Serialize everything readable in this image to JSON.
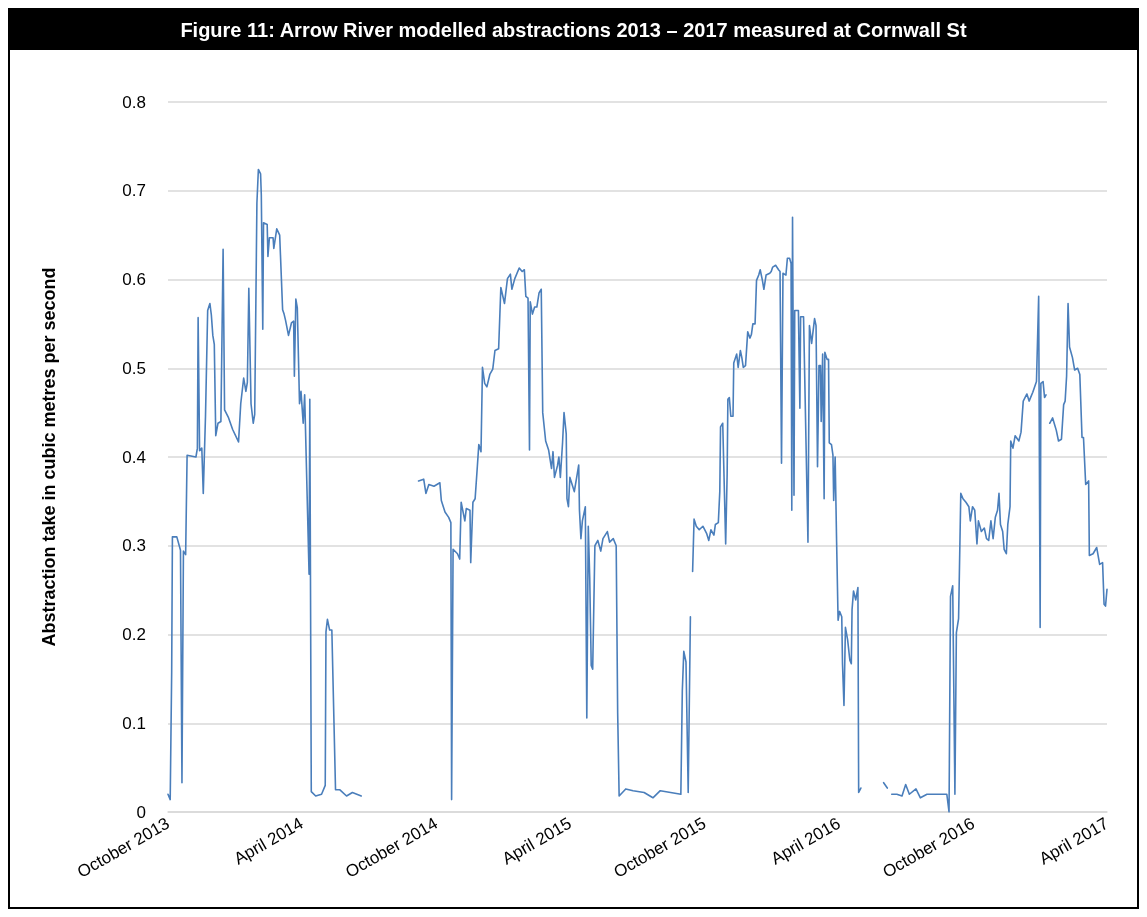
{
  "chart_data": {
    "type": "line",
    "title": "Figure 11: Arrow River modelled abstractions 2013 – 2017 measured at Cornwall St",
    "ylabel": "Abstraction take in cubic metres per second",
    "xlim": [
      "2013-10-01",
      "2017-04-01"
    ],
    "xticks": [
      {
        "value": "2013-10-01",
        "label": "October 2013"
      },
      {
        "value": "2014-04-01",
        "label": "April 2014"
      },
      {
        "value": "2014-10-01",
        "label": "October 2014"
      },
      {
        "value": "2015-04-01",
        "label": "April 2015"
      },
      {
        "value": "2015-10-01",
        "label": "October 2015"
      },
      {
        "value": "2016-04-01",
        "label": "April 2016"
      },
      {
        "value": "2016-10-01",
        "label": "October 2016"
      },
      {
        "value": "2017-04-01",
        "label": "April 2017"
      }
    ],
    "ylim": [
      0,
      0.8
    ],
    "yticks": [
      0,
      0.1,
      0.2,
      0.3,
      0.4,
      0.5,
      0.6,
      0.7,
      0.8
    ],
    "grid": "y",
    "marker": "none",
    "line_style": "solid",
    "x": [
      "2013-10-01",
      "2013-10-04",
      "2013-10-06",
      "2013-10-07",
      "2013-10-13",
      "2013-10-18",
      "2013-10-20",
      "2013-10-22",
      "2013-10-25",
      "2013-10-27",
      "2013-11-08",
      "2013-11-10",
      "2013-11-11",
      "2013-11-13",
      "2013-11-16",
      "2013-11-18",
      "2013-11-21",
      "2013-11-24",
      "2013-11-27",
      "2013-11-29",
      "2013-12-01",
      "2013-12-03",
      "2013-12-05",
      "2013-12-08",
      "2013-12-12",
      "2013-12-15",
      "2013-12-17",
      "2013-12-22",
      "2013-12-28",
      "2014-01-05",
      "2014-01-08",
      "2014-01-12",
      "2014-01-15",
      "2014-01-17",
      "2014-01-19",
      "2014-01-22",
      "2014-01-25",
      "2014-01-27",
      "2014-01-30",
      "2014-02-01",
      "2014-02-04",
      "2014-02-05",
      "2014-02-07",
      "2014-02-08",
      "2014-02-13",
      "2014-02-14",
      "2014-02-16",
      "2014-02-21",
      "2014-02-22",
      "2014-02-26",
      "2014-03-02",
      "2014-03-06",
      "2014-03-08",
      "2014-03-10",
      "2014-03-14",
      "2014-03-18",
      "2014-03-21",
      "2014-03-22",
      "2014-03-24",
      "2014-03-26",
      "2014-03-29",
      "2014-03-31",
      "2014-04-03",
      "2014-04-05",
      "2014-04-11",
      "2014-04-12",
      "2014-04-14",
      "2014-04-20",
      "2014-04-28",
      "2014-05-03",
      "2014-05-04",
      "2014-05-06",
      "2014-05-09",
      "2014-05-12",
      "2014-05-17",
      "2014-05-23",
      "2014-06-01",
      "2014-06-09",
      "2014-06-21",
      "2014-08-01",
      "2014-09-07",
      "2014-09-14",
      "2014-09-17",
      "2014-09-21",
      "2014-09-28",
      "2014-10-06",
      "2014-10-08",
      "2014-10-13",
      "2014-10-18",
      "2014-10-21",
      "2014-10-22",
      "2014-10-24",
      "2014-10-30",
      "2014-11-02",
      "2014-11-04",
      "2014-11-09",
      "2014-11-11",
      "2014-11-16",
      "2014-11-17",
      "2014-11-20",
      "2014-11-23",
      "2014-11-26",
      "2014-11-28",
      "2014-12-01",
      "2014-12-03",
      "2014-12-06",
      "2014-12-09",
      "2014-12-13",
      "2014-12-17",
      "2014-12-20",
      "2014-12-25",
      "2014-12-28",
      "2015-01-02",
      "2015-01-06",
      "2015-01-10",
      "2015-01-12",
      "2015-01-16",
      "2015-01-22",
      "2015-01-26",
      "2015-01-29",
      "2015-01-31",
      "2015-02-03",
      "2015-02-05",
      "2015-02-06",
      "2015-02-09",
      "2015-02-12",
      "2015-02-15",
      "2015-02-18",
      "2015-02-21",
      "2015-02-23",
      "2015-02-27",
      "2015-03-03",
      "2015-03-07",
      "2015-03-09",
      "2015-03-11",
      "2015-03-15",
      "2015-03-17",
      "2015-03-19",
      "2015-03-22",
      "2015-03-24",
      "2015-03-27",
      "2015-03-28",
      "2015-03-30",
      "2015-04-01",
      "2015-04-04",
      "2015-04-07",
      "2015-04-11",
      "2015-04-13",
      "2015-04-14",
      "2015-04-16",
      "2015-04-18",
      "2015-04-22",
      "2015-04-24",
      "2015-04-26",
      "2015-04-28",
      "2015-04-30",
      "2015-05-02",
      "2015-05-05",
      "2015-05-09",
      "2015-05-13",
      "2015-05-16",
      "2015-05-22",
      "2015-05-25",
      "2015-05-30",
      "2015-06-03",
      "2015-06-05",
      "2015-06-07",
      "2015-06-16",
      "2015-06-26",
      "2015-07-11",
      "2015-07-23",
      "2015-08-02",
      "2015-08-16",
      "2015-08-30",
      "2015-09-01",
      "2015-09-03",
      "2015-09-06",
      "2015-09-09",
      "2015-09-12",
      "2015-09-13",
      "2015-09-15",
      "2015-09-17",
      "2015-09-20",
      "2015-09-24",
      "2015-09-29",
      "2015-10-04",
      "2015-10-07",
      "2015-10-10",
      "2015-10-14",
      "2015-10-16",
      "2015-10-20",
      "2015-10-22",
      "2015-10-23",
      "2015-10-26",
      "2015-10-30",
      "2015-11-01",
      "2015-11-02",
      "2015-11-04",
      "2015-11-06",
      "2015-11-09",
      "2015-11-10",
      "2015-11-14",
      "2015-11-16",
      "2015-11-19",
      "2015-11-21",
      "2015-11-23",
      "2015-11-26",
      "2015-11-29",
      "2015-12-02",
      "2015-12-04",
      "2015-12-06",
      "2015-12-09",
      "2015-12-11",
      "2015-12-14",
      "2015-12-16",
      "2015-12-19",
      "2015-12-21",
      "2015-12-24",
      "2015-12-29",
      "2015-12-31",
      "2016-01-02",
      "2016-01-06",
      "2016-01-10",
      "2016-01-12",
      "2016-01-14",
      "2016-01-16",
      "2016-01-20",
      "2016-01-22",
      "2016-01-25",
      "2016-01-27",
      "2016-01-28",
      "2016-01-29",
      "2016-01-31",
      "2016-02-01",
      "2016-02-06",
      "2016-02-08",
      "2016-02-09",
      "2016-02-13",
      "2016-02-19",
      "2016-02-21",
      "2016-02-24",
      "2016-02-28",
      "2016-03-01",
      "2016-03-03",
      "2016-03-05",
      "2016-03-07",
      "2016-03-08",
      "2016-03-10",
      "2016-03-12",
      "2016-03-13",
      "2016-03-16",
      "2016-03-18",
      "2016-03-19",
      "2016-03-22",
      "2016-03-24",
      "2016-03-25",
      "2016-03-27",
      "2016-03-29",
      "2016-03-31",
      "2016-04-02",
      "2016-04-05",
      "2016-04-06",
      "2016-04-08",
      "2016-04-10",
      "2016-04-13",
      "2016-04-16",
      "2016-04-18",
      "2016-04-19",
      "2016-04-21",
      "2016-04-24",
      "2016-04-27",
      "2016-04-28",
      "2016-05-01",
      "2016-05-10",
      "2016-06-01",
      "2016-06-06",
      "2016-06-08",
      "2016-06-12",
      "2016-06-19",
      "2016-06-26",
      "2016-07-01",
      "2016-07-06",
      "2016-07-15",
      "2016-07-21",
      "2016-07-30",
      "2016-08-12",
      "2016-08-26",
      "2016-08-29",
      "2016-08-31",
      "2016-09-03",
      "2016-09-06",
      "2016-09-08",
      "2016-09-11",
      "2016-09-14",
      "2016-09-17",
      "2016-09-21",
      "2016-09-25",
      "2016-09-27",
      "2016-09-30",
      "2016-10-03",
      "2016-10-06",
      "2016-10-08",
      "2016-10-12",
      "2016-10-16",
      "2016-10-19",
      "2016-10-22",
      "2016-10-25",
      "2016-10-28",
      "2016-10-31",
      "2016-11-03",
      "2016-11-05",
      "2016-11-07",
      "2016-11-10",
      "2016-11-12",
      "2016-11-15",
      "2016-11-17",
      "2016-11-20",
      "2016-11-21",
      "2016-11-24",
      "2016-11-27",
      "2016-12-02",
      "2016-12-05",
      "2016-12-08",
      "2016-12-13",
      "2016-12-16",
      "2016-12-21",
      "2016-12-26",
      "2016-12-29",
      "2016-12-31",
      "2017-01-01",
      "2017-01-04",
      "2017-01-06",
      "2017-01-08",
      "2017-01-10",
      "2017-01-13",
      "2017-01-17",
      "2017-01-22",
      "2017-01-25",
      "2017-01-29",
      "2017-02-01",
      "2017-02-03",
      "2017-02-05",
      "2017-02-07",
      "2017-02-09",
      "2017-02-13",
      "2017-02-16",
      "2017-02-20",
      "2017-02-23",
      "2017-02-26",
      "2017-02-28",
      "2017-03-03",
      "2017-03-07",
      "2017-03-08",
      "2017-03-13",
      "2017-03-18",
      "2017-03-22",
      "2017-03-26",
      "2017-03-28",
      "2017-03-30",
      "2017-04-01"
    ],
    "series": [
      {
        "color": "#4a7ebb",
        "values": [
          0.02,
          0.014,
          0.157,
          0.31,
          0.31,
          0.295,
          0.033,
          0.294,
          0.29,
          0.402,
          0.4,
          0.41,
          0.557,
          0.407,
          0.41,
          0.359,
          0.445,
          0.565,
          0.573,
          0.56,
          0.537,
          0.527,
          0.424,
          0.438,
          0.44,
          0.634,
          0.453,
          0.445,
          0.431,
          0.417,
          0.46,
          0.489,
          0.474,
          0.484,
          0.59,
          0.46,
          0.438,
          0.448,
          0.686,
          0.724,
          0.719,
          0.695,
          0.544,
          0.664,
          0.662,
          0.626,
          0.647,
          0.647,
          0.635,
          0.657,
          0.65,
          0.566,
          0.561,
          0.554,
          0.537,
          0.551,
          0.553,
          0.491,
          0.578,
          0.568,
          0.46,
          0.474,
          0.438,
          0.47,
          0.268,
          0.465,
          0.023,
          0.018,
          0.02,
          0.03,
          0.203,
          0.217,
          0.205,
          0.205,
          0.025,
          0.025,
          0.018,
          0.022,
          0.018,
          null,
          0.373,
          0.375,
          0.359,
          0.369,
          0.367,
          0.371,
          0.351,
          0.338,
          0.332,
          0.326,
          0.014,
          0.296,
          0.291,
          0.285,
          0.349,
          0.328,
          0.342,
          0.34,
          0.281,
          0.349,
          0.353,
          0.389,
          0.414,
          0.406,
          0.501,
          0.483,
          0.479,
          0.493,
          0.499,
          0.52,
          0.522,
          0.591,
          0.573,
          0.601,
          0.606,
          0.589,
          0.601,
          0.613,
          0.609,
          0.611,
          0.581,
          0.579,
          0.408,
          0.575,
          0.561,
          0.569,
          0.569,
          0.585,
          0.589,
          0.45,
          0.418,
          0.408,
          0.387,
          0.406,
          0.377,
          0.39,
          0.4,
          0.377,
          0.416,
          0.45,
          0.426,
          0.353,
          0.344,
          0.377,
          0.369,
          0.361,
          0.381,
          0.391,
          0.34,
          0.308,
          0.328,
          0.344,
          0.106,
          0.322,
          0.263,
          0.165,
          0.161,
          0.3,
          0.306,
          0.294,
          0.308,
          0.316,
          0.304,
          0.308,
          0.3,
          0.112,
          0.018,
          0.026,
          0.024,
          0.022,
          0.016,
          0.024,
          0.022,
          0.02,
          0.137,
          0.181,
          0.169,
          0.022,
          0.22,
          null,
          0.271,
          0.33,
          0.322,
          0.318,
          0.322,
          0.314,
          0.306,
          0.318,
          0.312,
          0.324,
          0.326,
          0.361,
          0.434,
          0.438,
          0.302,
          0.38,
          0.465,
          0.467,
          0.446,
          0.446,
          0.506,
          0.516,
          0.501,
          0.52,
          0.512,
          0.501,
          0.503,
          0.541,
          0.534,
          0.538,
          0.55,
          0.55,
          0.599,
          0.605,
          0.611,
          0.599,
          0.589,
          0.605,
          0.607,
          0.609,
          0.614,
          0.616,
          0.611,
          0.609,
          0.393,
          0.607,
          0.605,
          0.624,
          0.624,
          0.618,
          0.34,
          0.67,
          0.357,
          0.565,
          0.565,
          0.455,
          0.558,
          0.558,
          0.304,
          0.548,
          0.528,
          0.556,
          0.548,
          0.389,
          0.503,
          0.503,
          0.44,
          0.516,
          0.353,
          0.518,
          0.51,
          0.51,
          0.416,
          0.414,
          0.402,
          0.351,
          0.4,
          0.304,
          0.216,
          0.226,
          0.22,
          0.167,
          0.12,
          0.208,
          0.194,
          0.171,
          0.167,
          0.228,
          0.249,
          0.239,
          0.253,
          0.022,
          0.027,
          null,
          0.033,
          0.027,
          null,
          0.02,
          0.02,
          0.018,
          0.031,
          0.02,
          0.026,
          0.016,
          0.02,
          0.02,
          0.02,
          0,
          0.243,
          0.255,
          0.02,
          0.202,
          0.218,
          0.359,
          0.353,
          0.349,
          0.344,
          0.328,
          0.344,
          0.34,
          0.302,
          0.328,
          0.316,
          0.32,
          0.308,
          0.306,
          0.328,
          0.308,
          0.332,
          0.34,
          0.359,
          0.324,
          0.316,
          0.296,
          0.291,
          0.324,
          0.344,
          0.418,
          0.41,
          0.424,
          0.418,
          0.428,
          0.463,
          0.471,
          0.463,
          0.473,
          0.485,
          0.581,
          0.208,
          0.483,
          0.485,
          0.467,
          0.47,
          null,
          0.438,
          0.444,
          0.43,
          0.418,
          0.42,
          0.459,
          0.463,
          0.491,
          0.573,
          0.524,
          0.512,
          0.498,
          0.5,
          0.493,
          0.422,
          0.422,
          0.369,
          0.373,
          0.289,
          0.291,
          0.298,
          0.279,
          0.281,
          0.234,
          0.232,
          0.251
        ]
      }
    ]
  }
}
